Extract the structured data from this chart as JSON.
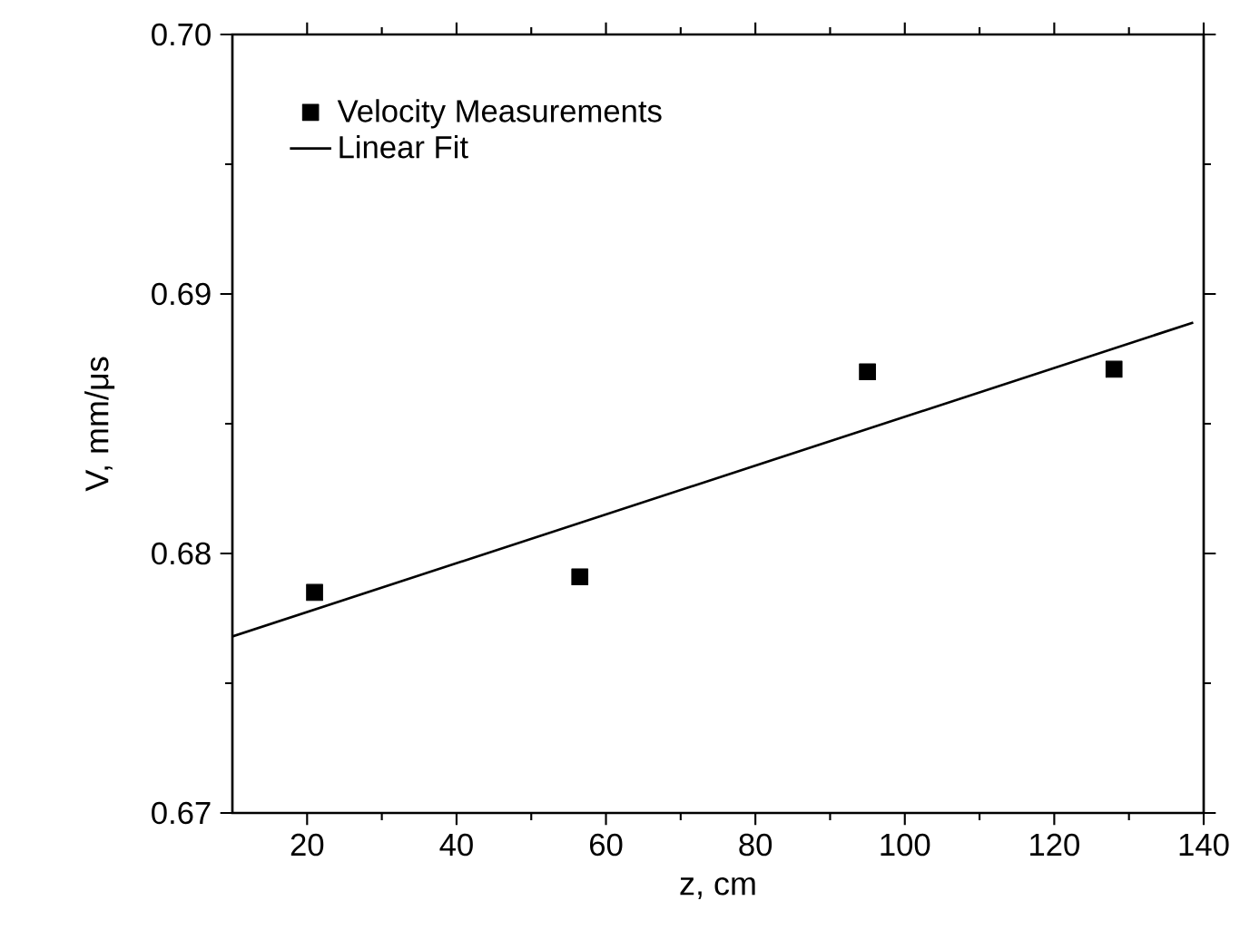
{
  "chart_data": {
    "type": "scatter",
    "xlabel": "z, cm",
    "ylabel": "V, mm/μs",
    "series": [
      {
        "name": "Velocity Measurements",
        "marker": "square",
        "color": "#000000",
        "x": [
          21,
          56.5,
          95,
          128
        ],
        "values": [
          0.6785,
          0.6791,
          0.687,
          0.6871
        ]
      },
      {
        "name": "Linear Fit",
        "type": "line",
        "marker": "none",
        "color": "#000000",
        "x": [
          10,
          138.6
        ],
        "values": [
          0.6768,
          0.6889
        ]
      }
    ],
    "line_style": "solid",
    "legend": "top left",
    "xlim": [
      10,
      140
    ],
    "xticks": [
      20,
      40,
      60,
      80,
      100,
      120,
      140
    ],
    "ylim": [
      0.67,
      0.7
    ],
    "yticks": [
      0.67,
      0.68,
      0.69,
      {
        "value": 0.7,
        "label": "0.70"
      }
    ]
  }
}
